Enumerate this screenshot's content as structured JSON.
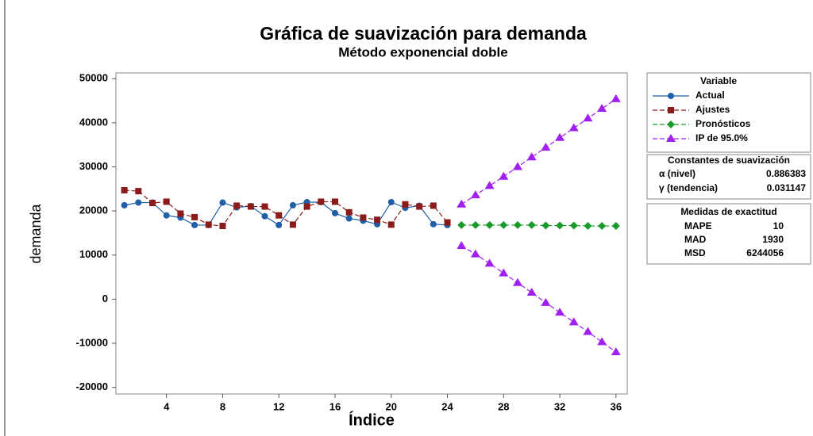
{
  "chart_data": {
    "type": "line",
    "title": "Gráfica de suavización  para demanda",
    "subtitle": "Método exponencial doble",
    "x_label": "Índice",
    "y_label": "demanda",
    "xlim": [
      0.4,
      36.8
    ],
    "ylim": [
      -21500,
      51300
    ],
    "xticks": [
      4,
      8,
      12,
      16,
      20,
      24,
      28,
      32,
      36
    ],
    "yticks": [
      -20000,
      -10000,
      0,
      10000,
      20000,
      30000,
      40000,
      50000
    ],
    "legend_title": "Variable",
    "series": [
      {
        "name": "Actual",
        "color": "#1f5fa8",
        "marker": "circle",
        "dashed": false,
        "x": [
          1,
          2,
          3,
          4,
          5,
          6,
          7,
          8,
          9,
          10,
          11,
          12,
          13,
          14,
          15,
          16,
          17,
          18,
          19,
          20,
          21,
          22,
          23,
          24
        ],
        "values": [
          21300,
          21900,
          21900,
          19000,
          18500,
          16800,
          16800,
          21900,
          20800,
          21100,
          18800,
          16800,
          21300,
          22000,
          22000,
          19500,
          18300,
          17800,
          17000,
          22000,
          20700,
          21200,
          17000,
          16800
        ]
      },
      {
        "name": "Ajustes",
        "color": "#8b1a1a",
        "marker": "square",
        "dashed": true,
        "x": [
          1,
          2,
          3,
          4,
          5,
          6,
          7,
          8,
          9,
          10,
          11,
          12,
          13,
          14,
          15,
          16,
          17,
          18,
          19,
          20,
          21,
          22,
          23,
          24
        ],
        "values": [
          24700,
          24500,
          21800,
          22100,
          19400,
          18600,
          16900,
          16600,
          21200,
          21000,
          21000,
          19000,
          16900,
          21000,
          22100,
          22100,
          19700,
          18500,
          18000,
          16900,
          21500,
          21000,
          21200,
          17400
        ]
      },
      {
        "name": "Pronósticos",
        "color": "#1a9a2a",
        "marker": "diamond",
        "dashed": true,
        "x": [
          25,
          26,
          27,
          28,
          29,
          30,
          31,
          32,
          33,
          34,
          35,
          36
        ],
        "values": [
          16800,
          16800,
          16800,
          16800,
          16800,
          16800,
          16700,
          16700,
          16700,
          16600,
          16600,
          16600
        ]
      },
      {
        "name": "IP de 95.0%",
        "color": "#a020f0",
        "marker": "triangle",
        "dashed": true,
        "x": [
          25,
          26,
          27,
          28,
          29,
          30,
          31,
          32,
          33,
          34,
          35,
          36
        ],
        "upper": [
          21500,
          23600,
          25700,
          27800,
          30000,
          32200,
          34400,
          36600,
          38800,
          41000,
          43200,
          45400
        ],
        "lower": [
          12100,
          10200,
          8100,
          5900,
          3700,
          1500,
          -800,
          -3000,
          -5200,
          -7400,
          -9700,
          -12000
        ]
      }
    ],
    "constants": {
      "title": "Constantes de suavización",
      "rows": [
        [
          "α (nivel)",
          0.886383
        ],
        [
          "γ (tendencia)",
          0.031147
        ]
      ]
    },
    "accuracy": {
      "title": "Medidas de exactitud",
      "rows": [
        [
          "MAPE",
          10
        ],
        [
          "MAD",
          1930
        ],
        [
          "MSD",
          6244056
        ]
      ]
    }
  }
}
